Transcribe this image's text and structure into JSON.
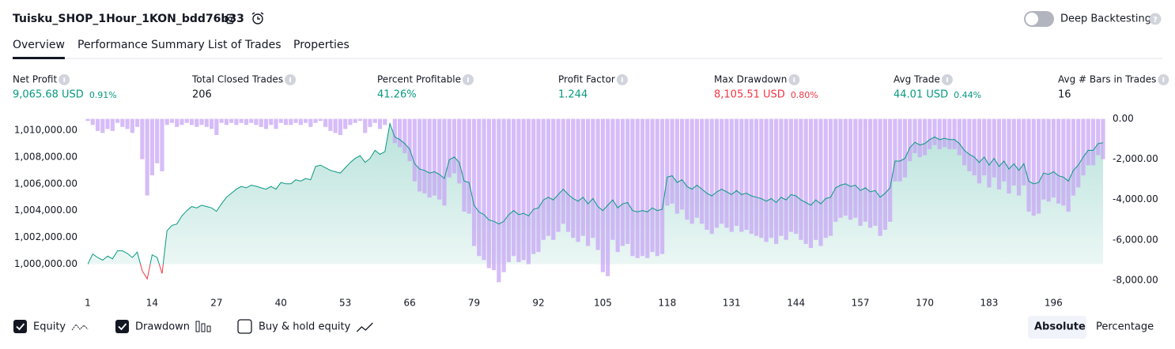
{
  "header": {
    "title": "Tuisku_SHOP_1Hour_1KON_bdd76b33",
    "toggle_label": "Deep Backtesting",
    "help": "?"
  },
  "tabs": {
    "items": [
      "Overview",
      "Performance Summary",
      "List of Trades",
      "Properties"
    ],
    "active": 0
  },
  "metrics": [
    {
      "label": "Net Profit",
      "value": "9,065.68 USD",
      "percent": "0.91%",
      "color": "#089981"
    },
    {
      "label": "Total Closed Trades",
      "value": "206",
      "color": "#131722"
    },
    {
      "label": "Percent Profitable",
      "value": "41.26%",
      "color": "#089981"
    },
    {
      "label": "Profit Factor",
      "value": "1.244",
      "color": "#089981"
    },
    {
      "label": "Max Drawdown",
      "value": "8,105.51 USD",
      "percent": "0.80%",
      "color": "#f23645"
    },
    {
      "label": "Avg Trade",
      "value": "44.01 USD",
      "percent": "0.44%",
      "color": "#089981"
    },
    {
      "label": "Avg # Bars in Trades",
      "value": "16",
      "color": "#131722"
    }
  ],
  "chart_data": {
    "type": "line",
    "xlim": [
      1,
      206
    ],
    "xticks": [
      1,
      14,
      27,
      40,
      53,
      66,
      79,
      92,
      105,
      118,
      131,
      144,
      157,
      170,
      183,
      196
    ],
    "ylim": [
      998500,
      1011000
    ],
    "yticks": [
      {
        "value": 1000000,
        "label": "1,000,000.00"
      },
      {
        "value": 1002000,
        "label": "1,002,000.00"
      },
      {
        "value": 1004000,
        "label": "1,004,000.00"
      },
      {
        "value": 1006000,
        "label": "1,006,000.00"
      },
      {
        "value": 1008000,
        "label": "1,008,000.00"
      },
      {
        "value": 1010000,
        "label": "1,010,000.00"
      }
    ],
    "y2lim": [
      -8200,
      100
    ],
    "y2ticks": [
      {
        "value": 0,
        "label": "0.00"
      },
      {
        "value": -2000,
        "label": "-2,000.00"
      },
      {
        "value": -4000,
        "label": "-4,000.00"
      },
      {
        "value": -6000,
        "label": "-6,000.00"
      },
      {
        "value": -8000,
        "label": "-8,000.00"
      }
    ],
    "series": [
      {
        "name": "Equity",
        "type": "area",
        "color": "#089981",
        "below_color": "#f23645",
        "visible": true,
        "values": [
          1000000,
          1000760,
          1000500,
          1000300,
          1000600,
          1000400,
          1001000,
          1001000,
          1000800,
          1000500,
          1000900,
          999500,
          998900,
          1000700,
          1000500,
          999300,
          1002500,
          1002900,
          1003000,
          1003600,
          1004000,
          1004300,
          1004200,
          1004400,
          1004300,
          1004200,
          1003950,
          1004500,
          1005000,
          1005300,
          1005600,
          1005800,
          1005700,
          1005900,
          1005820,
          1005700,
          1005600,
          1005800,
          1005600,
          1006100,
          1006000,
          1006000,
          1006300,
          1006200,
          1006400,
          1006300,
          1007300,
          1007400,
          1007200,
          1007000,
          1006900,
          1006800,
          1007200,
          1007600,
          1007900,
          1008100,
          1007600,
          1007900,
          1008500,
          1008200,
          1008400,
          1010500,
          1009500,
          1009300,
          1009000,
          1008600,
          1007500,
          1007100,
          1007000,
          1006800,
          1006900,
          1006700,
          1006400,
          1007800,
          1008000,
          1007600,
          1006200,
          1006100,
          1004400,
          1003900,
          1003700,
          1003300,
          1003200,
          1003000,
          1003200,
          1003700,
          1004000,
          1003700,
          1003800,
          1003600,
          1004100,
          1004200,
          1004800,
          1005000,
          1004800,
          1005200,
          1005600,
          1005200,
          1004900,
          1004700,
          1005000,
          1004500,
          1004900,
          1004300,
          1004000,
          1004400,
          1004800,
          1004200,
          1004500,
          1004600,
          1004000,
          1003900,
          1004000,
          1003900,
          1004200,
          1004000,
          1004100,
          1006500,
          1006600,
          1006100,
          1006300,
          1005800,
          1005600,
          1005900,
          1005600,
          1005300,
          1005100,
          1005400,
          1005600,
          1005400,
          1005200,
          1005500,
          1005200,
          1005300,
          1005100,
          1005000,
          1004900,
          1004700,
          1004900,
          1004600,
          1005000,
          1004800,
          1005200,
          1005100,
          1004800,
          1004600,
          1004400,
          1004800,
          1004500,
          1004900,
          1005000,
          1005700,
          1005900,
          1006000,
          1005800,
          1005900,
          1005500,
          1005700,
          1005400,
          1005500,
          1005000,
          1005300,
          1005700,
          1007700,
          1007700,
          1007900,
          1008700,
          1009100,
          1008900,
          1009000,
          1009300,
          1009500,
          1009300,
          1009400,
          1009300,
          1009300,
          1009000,
          1008500,
          1008200,
          1008000,
          1007600,
          1008000,
          1007400,
          1007900,
          1007300,
          1007700,
          1007100,
          1007500,
          1007000,
          1007500,
          1006200,
          1006000,
          1006100,
          1006800,
          1006700,
          1006900,
          1006600,
          1006500,
          1006200,
          1007000,
          1007400,
          1008000,
          1008500,
          1008500,
          1009000,
          1009065.68
        ]
      },
      {
        "name": "Drawdown",
        "type": "bar",
        "axis": "y2",
        "color": "#c6a2f5",
        "visible": true,
        "values": [
          -100,
          -300,
          -600,
          -700,
          -500,
          -600,
          -200,
          -400,
          -500,
          -700,
          -400,
          -2000,
          -3800,
          -2800,
          -2200,
          -2600,
          -300,
          -200,
          -400,
          -300,
          -200,
          -300,
          -400,
          -300,
          -400,
          -500,
          -800,
          -200,
          -300,
          -200,
          -300,
          -200,
          -300,
          -200,
          -300,
          -400,
          -500,
          -300,
          -500,
          -200,
          -300,
          -300,
          -200,
          -300,
          -200,
          -400,
          -200,
          -100,
          -400,
          -600,
          -700,
          -800,
          -500,
          -300,
          -200,
          -100,
          -700,
          -400,
          -200,
          -500,
          -300,
          0,
          -1200,
          -1400,
          -1700,
          -2100,
          -3100,
          -3600,
          -3700,
          -3900,
          -3800,
          -4000,
          -4300,
          -2900,
          -2700,
          -3200,
          -4600,
          -4700,
          -6300,
          -6800,
          -7000,
          -7400,
          -7500,
          -8100,
          -7600,
          -7100,
          -6800,
          -7100,
          -7000,
          -7200,
          -6700,
          -6600,
          -6000,
          -5800,
          -6000,
          -5600,
          -5200,
          -5600,
          -5900,
          -6100,
          -5800,
          -6300,
          -5900,
          -6500,
          -7600,
          -7800,
          -6000,
          -6600,
          -6300,
          -6200,
          -6800,
          -6900,
          -6800,
          -6900,
          -6600,
          -6800,
          -6700,
          -4300,
          -4200,
          -4700,
          -4500,
          -5000,
          -5200,
          -4900,
          -5200,
          -5500,
          -5700,
          -5400,
          -5200,
          -5400,
          -5600,
          -5300,
          -5600,
          -5500,
          -5700,
          -5800,
          -5900,
          -6100,
          -5900,
          -6200,
          -5800,
          -6000,
          -5600,
          -5700,
          -6000,
          -6200,
          -6400,
          -6000,
          -6300,
          -5900,
          -5800,
          -5100,
          -4900,
          -4800,
          -5000,
          -4900,
          -5300,
          -5100,
          -5400,
          -5300,
          -5800,
          -5500,
          -5100,
          -3100,
          -3100,
          -2900,
          -2100,
          -1700,
          -1900,
          -1800,
          -1500,
          -1300,
          -1500,
          -1400,
          -1500,
          -1500,
          -1800,
          -2300,
          -2600,
          -2800,
          -3200,
          -2800,
          -3400,
          -2900,
          -3500,
          -3100,
          -3700,
          -3300,
          -3800,
          -3300,
          -4600,
          -4800,
          -4700,
          -4000,
          -4100,
          -3900,
          -4200,
          -4300,
          -4600,
          -3800,
          -3400,
          -2800,
          -2300,
          -2300,
          -1800,
          -2000
        ]
      }
    ]
  },
  "controls": {
    "extra_legend": "Buy & hold equity",
    "modes": [
      "Absolute",
      "Percentage"
    ],
    "active_mode": 0
  }
}
